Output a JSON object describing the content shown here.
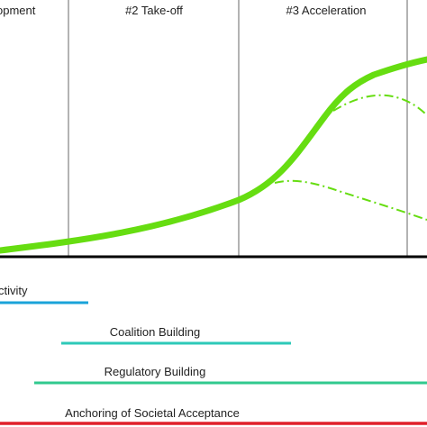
{
  "phases": [
    {
      "label": "opment"
    },
    {
      "label": "#2 Take-off"
    },
    {
      "label": "#3 Acceleration"
    },
    {
      "label": ""
    }
  ],
  "activities": [
    {
      "label": "ctivity",
      "color": "#1aa3d9"
    },
    {
      "label": "Coalition Building",
      "color": "#2dc9b8"
    },
    {
      "label": "Regulatory Building",
      "color": "#31c98f"
    },
    {
      "label": "Anchoring of Societal Acceptance",
      "color": "#e0202a"
    }
  ],
  "colors": {
    "main_curve": "#66dd11",
    "branch_curves": "#66dd11",
    "phase_dividers": "#8a8a8a",
    "baseline": "#000000",
    "text": "#222222"
  }
}
